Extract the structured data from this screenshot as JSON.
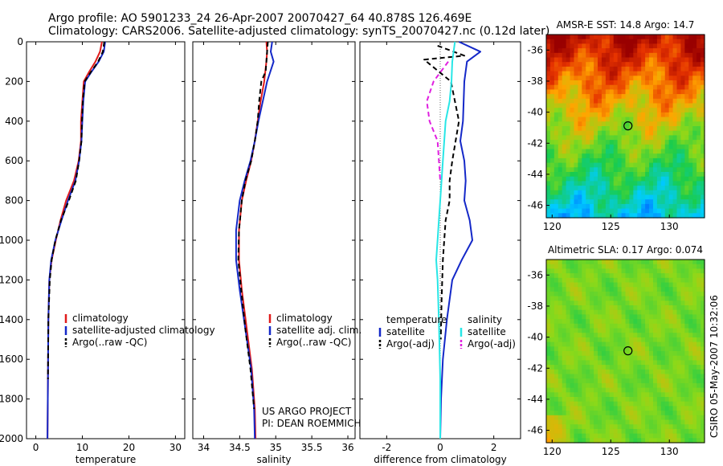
{
  "header": {
    "line1": "Argo profile: AO 5901233_24 26-Apr-2007 20070427_64 40.878S 126.469E",
    "line2": "Climatology: CARS2006. Satellite-adjusted climatology: synTS_20070427.nc (0.12d later)"
  },
  "credits": {
    "project": "US ARGO PROJECT",
    "pi": "PI: DEAN ROEMMICH",
    "stamp": "CSIRO 05-May-2007 10:32:06"
  },
  "colors": {
    "climatology": "#e01b1b",
    "satellite": "#1428c8",
    "argo": "#000000",
    "satellite_salinity": "#28e6e6",
    "argo_salinity": "#e020e0"
  },
  "chart_data": [
    {
      "type": "line",
      "id": "temperature",
      "xlabel": "temperature",
      "xlim": [
        -2,
        32
      ],
      "ylim": [
        2000,
        0
      ],
      "xticks": [
        0,
        10,
        20,
        30
      ],
      "yticks": [
        0,
        200,
        400,
        600,
        800,
        1000,
        1200,
        1400,
        1600,
        1800,
        2000
      ],
      "legend": [
        "climatology",
        "satellite-adjusted climatology",
        "Argo(..raw -QC)"
      ],
      "series": [
        {
          "name": "climatology",
          "color": "#e01b1b",
          "dash": false,
          "x": [
            14.2,
            13.8,
            12.8,
            11.5,
            10.3,
            10.0,
            9.7,
            9.7,
            9.2,
            8.2,
            6.5,
            5.3,
            4.3,
            3.4,
            2.9,
            2.7,
            2.6,
            2.5
          ],
          "y": [
            0,
            50,
            100,
            150,
            200,
            300,
            400,
            500,
            600,
            700,
            800,
            900,
            1000,
            1100,
            1200,
            1400,
            1700,
            2000
          ]
        },
        {
          "name": "satellite-adjusted climatology",
          "color": "#1428c8",
          "dash": false,
          "x": [
            14.9,
            14.6,
            13.5,
            12.0,
            10.6,
            10.2,
            10.0,
            9.8,
            9.3,
            8.5,
            6.9,
            5.5,
            4.2,
            3.3,
            2.9,
            2.7,
            2.6,
            2.5
          ],
          "y": [
            0,
            50,
            100,
            150,
            200,
            300,
            400,
            500,
            600,
            700,
            800,
            900,
            1000,
            1100,
            1200,
            1400,
            1700,
            2000
          ]
        },
        {
          "name": "Argo(..raw -QC)",
          "color": "#000000",
          "dash": true,
          "x": [
            14.7,
            14.4,
            13.4,
            11.9,
            10.5,
            10.1,
            9.9,
            9.8,
            9.3,
            8.6,
            7.1,
            5.4,
            4.2,
            3.4,
            3.0,
            2.7,
            2.6
          ],
          "y": [
            0,
            50,
            100,
            150,
            200,
            300,
            400,
            500,
            600,
            700,
            800,
            900,
            1000,
            1100,
            1200,
            1400,
            1700
          ]
        }
      ]
    },
    {
      "type": "line",
      "id": "salinity",
      "xlabel": "salinity",
      "xlim": [
        33.85,
        36.1
      ],
      "ylim": [
        2000,
        0
      ],
      "xticks": [
        34,
        34.5,
        35,
        35.5,
        36
      ],
      "legend": [
        "climatology",
        "satellite adj. clim.",
        "Argo(..raw -QC)"
      ],
      "series": [
        {
          "name": "climatology",
          "color": "#e01b1b",
          "dash": false,
          "x": [
            34.87,
            34.88,
            34.87,
            34.84,
            34.79,
            34.75,
            34.71,
            34.66,
            34.59,
            34.53,
            34.49,
            34.49,
            34.53,
            34.6,
            34.67,
            34.71,
            34.72
          ],
          "y": [
            0,
            50,
            100,
            200,
            300,
            400,
            500,
            600,
            700,
            800,
            950,
            1100,
            1250,
            1450,
            1650,
            1850,
            2000
          ]
        },
        {
          "name": "satellite adj. clim.",
          "color": "#1428c8",
          "dash": false,
          "x": [
            34.95,
            34.93,
            34.97,
            34.88,
            34.82,
            34.76,
            34.71,
            34.65,
            34.57,
            34.5,
            34.45,
            34.45,
            34.5,
            34.58,
            34.66,
            34.7,
            34.71
          ],
          "y": [
            0,
            50,
            100,
            200,
            300,
            400,
            500,
            600,
            700,
            800,
            950,
            1100,
            1250,
            1450,
            1650,
            1850,
            2000
          ]
        },
        {
          "name": "Argo(..raw -QC)",
          "color": "#000000",
          "dash": true,
          "x": [
            34.89,
            34.88,
            34.86,
            34.8,
            34.77,
            34.75,
            34.71,
            34.66,
            34.58,
            34.53,
            34.49,
            34.48,
            34.52,
            34.58,
            34.65,
            34.7
          ],
          "y": [
            0,
            50,
            150,
            200,
            300,
            400,
            500,
            600,
            700,
            800,
            950,
            1100,
            1250,
            1450,
            1650,
            1850
          ]
        }
      ]
    },
    {
      "type": "line",
      "id": "difference",
      "xlabel": "difference from climatology",
      "xlim": [
        -3,
        3
      ],
      "ylim": [
        2000,
        0
      ],
      "xticks": [
        -2,
        0,
        2
      ],
      "legend_left_title": "temperature",
      "legend_right_title": "salinity",
      "legend": [
        "satellite",
        "Argo(-adj)",
        "satellite",
        "Argo(-adj)"
      ],
      "series": [
        {
          "name": "satellite",
          "color": "#1428c8",
          "dash": false,
          "x": [
            0.7,
            1.5,
            1.0,
            0.9,
            0.85,
            0.75,
            0.9,
            0.95,
            0.9,
            1.1,
            1.2,
            0.8,
            0.45,
            0.25,
            0.1,
            0.03,
            0.0
          ],
          "y": [
            0,
            50,
            100,
            200,
            400,
            500,
            600,
            700,
            800,
            900,
            1000,
            1100,
            1200,
            1400,
            1600,
            1800,
            2000
          ]
        },
        {
          "name": "Argo(-adj)",
          "color": "#000000",
          "dash": true,
          "x": [
            -0.1,
            0.9,
            -0.6,
            0.4,
            0.7,
            0.45,
            0.35,
            0.35,
            0.2,
            0.15,
            0.1,
            0.05,
            0.02
          ],
          "y": [
            20,
            70,
            90,
            200,
            400,
            600,
            700,
            800,
            900,
            1000,
            1100,
            1300,
            1500
          ]
        },
        {
          "name": "satellite",
          "color": "#28e6e6",
          "dash": false,
          "x": [
            0.55,
            0.45,
            0.42,
            0.35,
            0.2,
            0.1,
            0.0,
            -0.05,
            -0.1,
            -0.15,
            -0.1,
            -0.05,
            0.0,
            0.0
          ],
          "y": [
            0,
            100,
            200,
            300,
            400,
            600,
            800,
            900,
            1000,
            1100,
            1200,
            1400,
            1700,
            2000
          ]
        },
        {
          "name": "Argo(-adj)",
          "color": "#e020e0",
          "dash": true,
          "x": [
            0.3,
            -0.25,
            -0.5,
            -0.4,
            -0.1,
            0.0
          ],
          "y": [
            100,
            200,
            300,
            400,
            500,
            700
          ]
        }
      ]
    },
    {
      "type": "heatmap",
      "id": "sst",
      "title": "AMSR-E SST: 14.8  Argo: 14.7",
      "xlim": [
        119.5,
        133
      ],
      "ylim": [
        -46.8,
        -35
      ],
      "xticks": [
        120,
        125,
        130
      ],
      "yticks": [
        -36,
        -38,
        -40,
        -42,
        -44,
        -46
      ],
      "marker": {
        "lon": 126.47,
        "lat": -40.88
      }
    },
    {
      "type": "heatmap",
      "id": "sla",
      "title": "Altimetric SLA: 0.17  Argo: 0.074",
      "xlim": [
        119.5,
        133
      ],
      "ylim": [
        -46.8,
        -35
      ],
      "xticks": [
        120,
        125,
        130
      ],
      "yticks": [
        -36,
        -38,
        -40,
        -42,
        -44,
        -46
      ],
      "marker": {
        "lon": 126.47,
        "lat": -40.88
      }
    }
  ]
}
